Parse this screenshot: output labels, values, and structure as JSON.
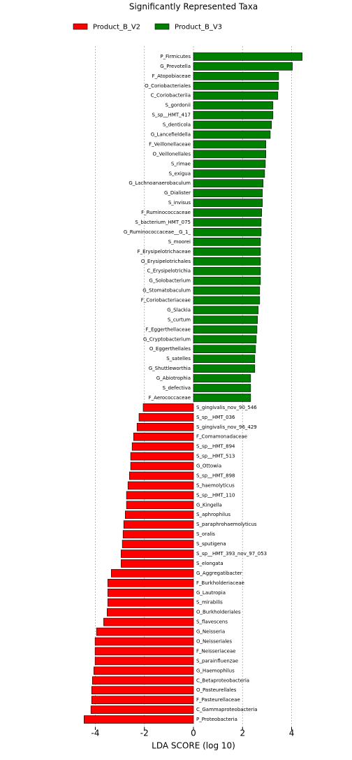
{
  "chart_data": {
    "type": "lda-bar",
    "title": "Significantly Represented Taxa",
    "x_label": "LDA SCORE (log 10)",
    "categories": [
      "P_Firmicutes",
      "G_Prevotella",
      "F_Atopobiaceae",
      "O_Coriobacteriales",
      "C_Coriobacteriia",
      "S_gordonii",
      "S_sp__HMT_417",
      "S_denticola",
      "G_Lancefieldella",
      "F_Veillonellaceae",
      "O_Veillonellales",
      "S_rimae",
      "S_exigua",
      "G_Lachnoanaerobaculum",
      "G_Dialister",
      "S_invisus",
      "F_Ruminococcaceae",
      "S_bacterium_HMT_075",
      "G_Ruminococcaceae__G_1_",
      "S_moorei",
      "F_Erysipelotrichaceae",
      "O_Erysipelotrichales",
      "C_Erysipelotrichia",
      "G_Solobacterium",
      "G_Stomatobaculum",
      "F_Coriobacteriaceae",
      "G_Slackia",
      "S_curtum",
      "F_Eggerthellaceae",
      "G_Cryptobacterium",
      "O_Eggerthellales",
      "S_satelles",
      "G_Shuttleworthia",
      "G_Abiotrophia",
      "S_defectiva",
      "F_Aerococcaceae",
      "S_gingivalis_nov_90_546",
      "S_sp__HMT_036",
      "S_gingivalis_nov_96_429",
      "F_Comamonadaceae",
      "S_sp__HMT_894",
      "S_sp__HMT_513",
      "G_Ottowia",
      "S_sp__HMT_898",
      "S_haemolyticus",
      "S_sp__HMT_110",
      "G_Kingella",
      "S_aphrophilus",
      "S_paraphrohaemolyticus",
      "S_oralis",
      "S_sputigena",
      "S_sp__HMT_393_nov_97_053",
      "S_elongata",
      "G_Aggregatibacter",
      "F_Burkholderiaceae",
      "G_Lautropia",
      "S_mirabilis",
      "O_Burkholderiales",
      "S_flavescens",
      "G_Neisseria",
      "O_Neisseriales",
      "F_Neisseriaceae",
      "S_parainfluenzae",
      "G_Haemophilus",
      "C_Betaproteobacteria",
      "O_Pasteurellales",
      "F_Pasteurellaceae",
      "C_Gammaproteobacteria",
      "P_Proteobacteria"
    ],
    "series": [
      {
        "name": "Product_B_V2",
        "color": "#ff0000",
        "values": [
          null,
          null,
          null,
          null,
          null,
          null,
          null,
          null,
          null,
          null,
          null,
          null,
          null,
          null,
          null,
          null,
          null,
          null,
          null,
          null,
          null,
          null,
          null,
          null,
          null,
          null,
          null,
          null,
          null,
          null,
          null,
          null,
          null,
          null,
          null,
          null,
          -2.05,
          -2.22,
          -2.3,
          -2.44,
          -2.5,
          -2.56,
          -2.56,
          -2.61,
          -2.67,
          -2.73,
          -2.73,
          -2.78,
          -2.84,
          -2.87,
          -2.9,
          -2.95,
          -2.95,
          -3.35,
          -3.49,
          -3.49,
          -3.49,
          -3.52,
          -3.66,
          -3.95,
          -4.01,
          -4.01,
          -4.01,
          -4.06,
          -4.12,
          -4.15,
          -4.15,
          -4.18,
          -4.46
        ]
      },
      {
        "name": "Product_B_V3",
        "color": "#008000",
        "values": [
          4.43,
          4.03,
          3.47,
          3.47,
          3.44,
          3.24,
          3.24,
          3.18,
          3.13,
          2.95,
          2.95,
          2.93,
          2.9,
          2.84,
          2.81,
          2.81,
          2.78,
          2.76,
          2.76,
          2.73,
          2.73,
          2.73,
          2.73,
          2.73,
          2.7,
          2.7,
          2.64,
          2.61,
          2.59,
          2.56,
          2.53,
          2.5,
          2.5,
          2.33,
          2.33,
          2.33,
          null,
          null,
          null,
          null,
          null,
          null,
          null,
          null,
          null,
          null,
          null,
          null,
          null,
          null,
          null,
          null,
          null,
          null,
          null,
          null,
          null,
          null,
          null,
          null,
          null,
          null,
          null,
          null,
          null,
          null,
          null,
          null,
          null
        ]
      }
    ],
    "xlim": [
      -4.6,
      4.6
    ],
    "xticks": [
      -4,
      -2,
      0,
      2,
      4
    ],
    "grid": true
  }
}
